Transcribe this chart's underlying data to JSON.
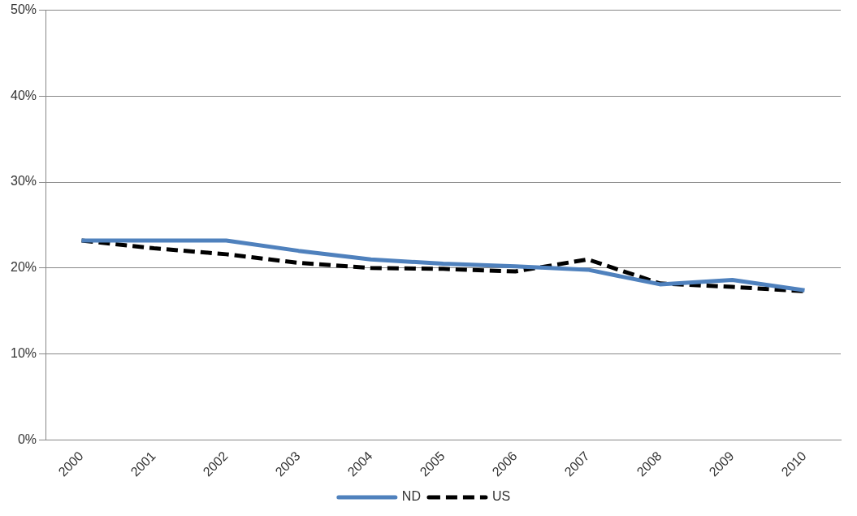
{
  "chart_data": {
    "type": "line",
    "categories": [
      "2000",
      "2001",
      "2002",
      "2003",
      "2004",
      "2005",
      "2006",
      "2007",
      "2008",
      "2009",
      "2010"
    ],
    "series": [
      {
        "name": "ND",
        "color": "#4f81bd",
        "line_style": "solid",
        "values": [
          23.2,
          23.2,
          23.2,
          22.0,
          21.0,
          20.5,
          20.2,
          19.8,
          18.1,
          18.6,
          17.4
        ]
      },
      {
        "name": "US",
        "color": "#000000",
        "line_style": "dashed",
        "values": [
          23.2,
          22.3,
          21.6,
          20.6,
          20.0,
          19.9,
          19.6,
          21.0,
          18.2,
          17.8,
          17.3
        ]
      }
    ],
    "ylim": [
      0,
      50
    ],
    "yticks": [
      {
        "value": 0,
        "label": "0%"
      },
      {
        "value": 10,
        "label": "10%"
      },
      {
        "value": 20,
        "label": "20%"
      },
      {
        "value": 30,
        "label": "30%"
      },
      {
        "value": 40,
        "label": "40%"
      },
      {
        "value": 50,
        "label": "50%"
      }
    ],
    "grid": "y",
    "legend": "bottom",
    "marker": "none"
  }
}
